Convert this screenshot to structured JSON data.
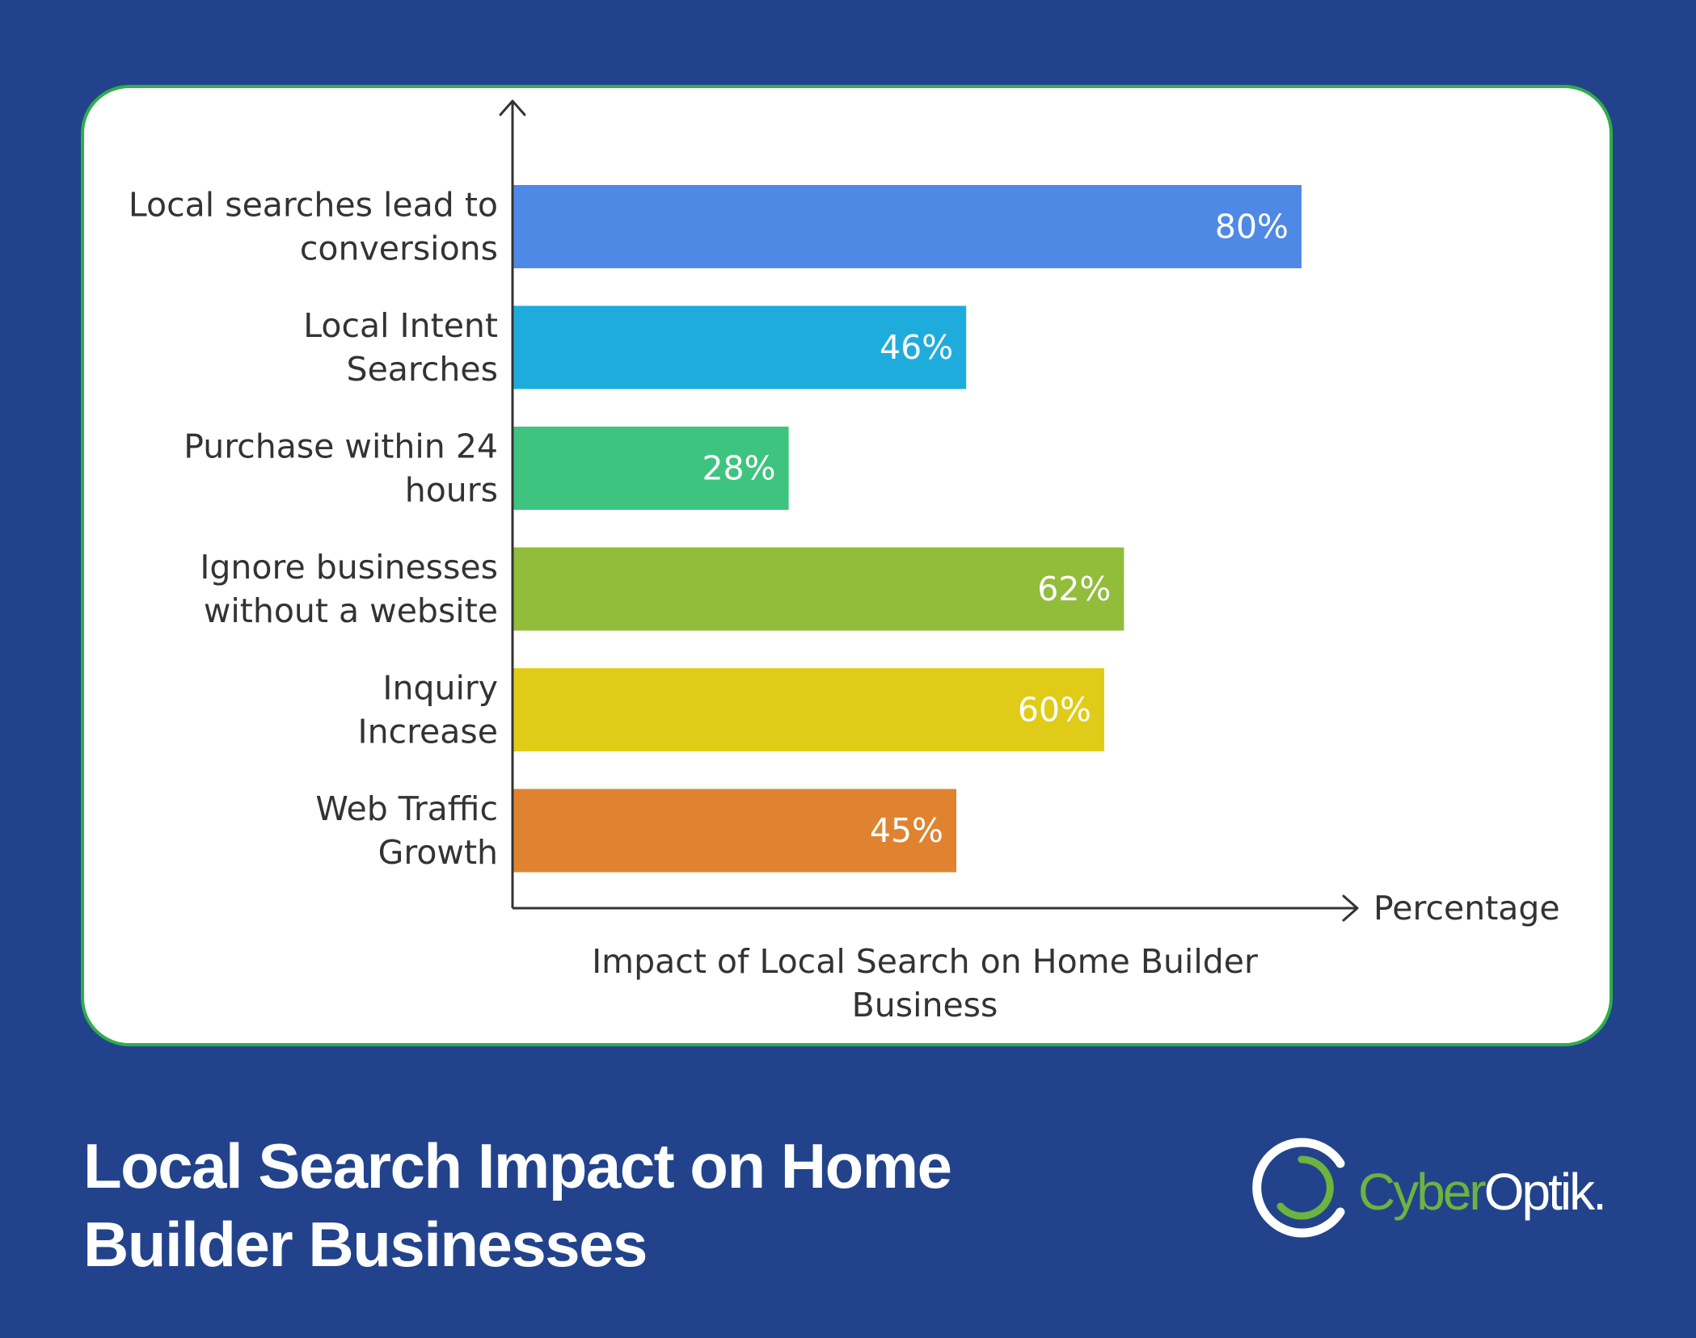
{
  "chart_data": {
    "type": "bar",
    "orientation": "horizontal",
    "categories": [
      [
        "Local searches lead to",
        "conversions"
      ],
      [
        "Local Intent",
        "Searches"
      ],
      [
        "Purchase within 24",
        "hours"
      ],
      [
        "Ignore businesses",
        "without a website"
      ],
      [
        "Inquiry",
        "Increase"
      ],
      [
        "Web Traffic",
        "Growth"
      ]
    ],
    "values": [
      80,
      46,
      28,
      62,
      60,
      45
    ],
    "value_labels": [
      "80%",
      "46%",
      "28%",
      "62%",
      "60%",
      "45%"
    ],
    "colors": [
      "#4f89e6",
      "#1eacdc",
      "#3ec47f",
      "#91bd3b",
      "#e0cc18",
      "#e08331"
    ],
    "title": [
      "Impact of Local Search on Home Builder",
      "Business"
    ],
    "xlabel": "Percentage",
    "ylabel": "",
    "xlim": [
      0,
      100
    ],
    "grid": false,
    "legend": "none"
  },
  "footer": {
    "title_line1": "Local Search Impact on Home",
    "title_line2": "Builder Businesses"
  },
  "brand": {
    "name_part1": "Cyber",
    "name_part2": "Optik.",
    "logo_icon": "ring-logo-icon",
    "colors": {
      "green": "#6cb33f",
      "white": "#ffffff"
    }
  },
  "theme": {
    "background": "#22438c",
    "card_border": "#2fae4a",
    "axis_color": "#333333"
  }
}
